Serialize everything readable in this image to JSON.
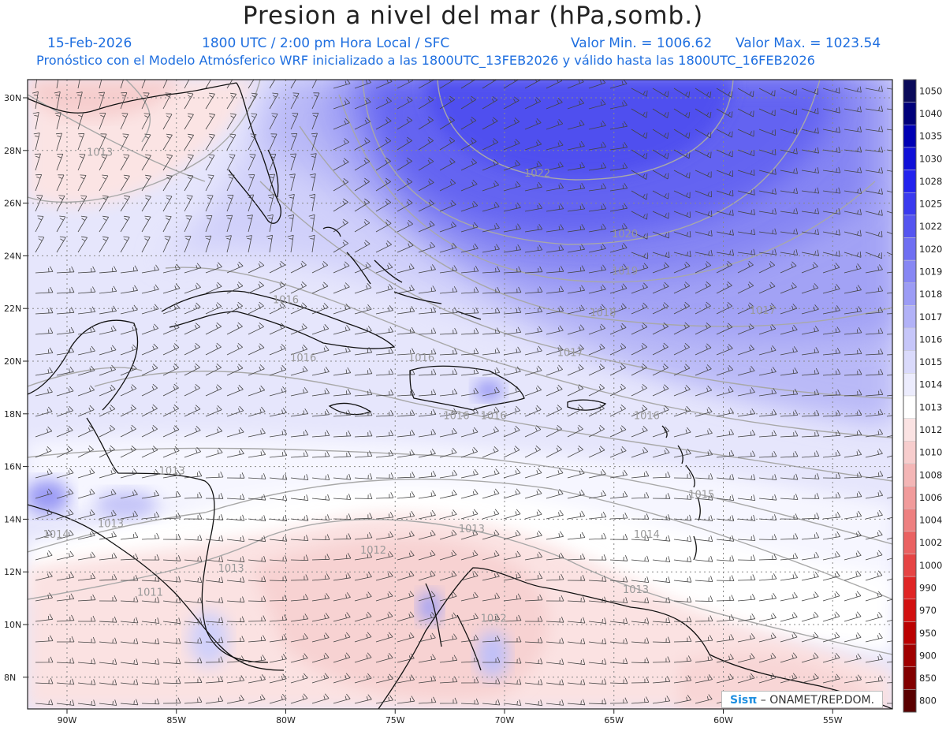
{
  "title": "Presion a nivel del mar (hPa,somb.)",
  "date": "15-Feb-2026",
  "time": "1800 UTC / 2:00 pm Hora Local / SFC",
  "valor_min": "Valor Min. = 1006.62",
  "valor_max": "Valor Max. = 1023.54",
  "forecast_line": "Pronóstico con el Modelo Atmósferico WRF inicializado a las 1800UTC_13FEB2026 y válido hasta las  1800UTC_16FEB2026",
  "lat_labels": [
    "30N",
    "28N",
    "26N",
    "24N",
    "22N",
    "20N",
    "18N",
    "16N",
    "14N",
    "12N",
    "10N",
    "8N"
  ],
  "lon_labels": [
    "90W",
    "85W",
    "80W",
    "75W",
    "70W",
    "65W",
    "60W",
    "55W"
  ],
  "colorbar": {
    "levels": [
      "1050",
      "1040",
      "1035",
      "1030",
      "1028",
      "1025",
      "1022",
      "1020",
      "1019",
      "1018",
      "1017",
      "1016",
      "1015",
      "1014",
      "1013",
      "1012",
      "1010",
      "1008",
      "1006",
      "1004",
      "1002",
      "1000",
      "990",
      "970",
      "950",
      "900",
      "850",
      "800"
    ],
    "colors": [
      "#0a0a5a",
      "#00007a",
      "#0000b4",
      "#1010d8",
      "#2222ee",
      "#3a3aef",
      "#5555f0",
      "#6f6ff2",
      "#8787f4",
      "#9c9cf5",
      "#b2b2f7",
      "#c6c6f9",
      "#dadafb",
      "#ececfd",
      "#ffffff",
      "#fbe3e3",
      "#f7cdcd",
      "#f4b6b6",
      "#f19b9b",
      "#ee8080",
      "#ea6262",
      "#e64444",
      "#e02525",
      "#d21010",
      "#bb0000",
      "#a00000",
      "#820000",
      "#5a0000"
    ]
  },
  "contour_labels": [
    {
      "text": "1022",
      "lon": -68.5,
      "lat": 27.0
    },
    {
      "text": "1020",
      "lon": -64.5,
      "lat": 24.7
    },
    {
      "text": "1019",
      "lon": -64.5,
      "lat": 23.3
    },
    {
      "text": "1018",
      "lon": -65.5,
      "lat": 21.7
    },
    {
      "text": "1017",
      "lon": -67.0,
      "lat": 20.2
    },
    {
      "text": "1017",
      "lon": -58.2,
      "lat": 21.8
    },
    {
      "text": "1016",
      "lon": -80.0,
      "lat": 22.2
    },
    {
      "text": "1016",
      "lon": -79.2,
      "lat": 20.0
    },
    {
      "text": "1016",
      "lon": -73.8,
      "lat": 20.0
    },
    {
      "text": "1016",
      "lon": -63.5,
      "lat": 17.8
    },
    {
      "text": "1016",
      "lon": -72.2,
      "lat": 17.8
    },
    {
      "text": "1016",
      "lon": -70.5,
      "lat": 17.8
    },
    {
      "text": "1015",
      "lon": -61.0,
      "lat": 14.8
    },
    {
      "text": "1014",
      "lon": -63.5,
      "lat": 13.3
    },
    {
      "text": "1014",
      "lon": -90.5,
      "lat": 13.3
    },
    {
      "text": "1013",
      "lon": -88.5,
      "lat": 27.8
    },
    {
      "text": "1013",
      "lon": -71.5,
      "lat": 13.5
    },
    {
      "text": "1013",
      "lon": -88.0,
      "lat": 13.7
    },
    {
      "text": "1013",
      "lon": -82.5,
      "lat": 12.0
    },
    {
      "text": "1012",
      "lon": -76.0,
      "lat": 12.7
    },
    {
      "text": "1012",
      "lon": -70.5,
      "lat": 10.1
    },
    {
      "text": "1013",
      "lon": -64.0,
      "lat": 11.2
    },
    {
      "text": "1013",
      "lon": -85.2,
      "lat": 15.7
    },
    {
      "text": "1011",
      "lon": -86.2,
      "lat": 11.1
    }
  ],
  "credit_brand": "Sisπ",
  "credit_org": "– ONAMET/REP.DOM."
}
